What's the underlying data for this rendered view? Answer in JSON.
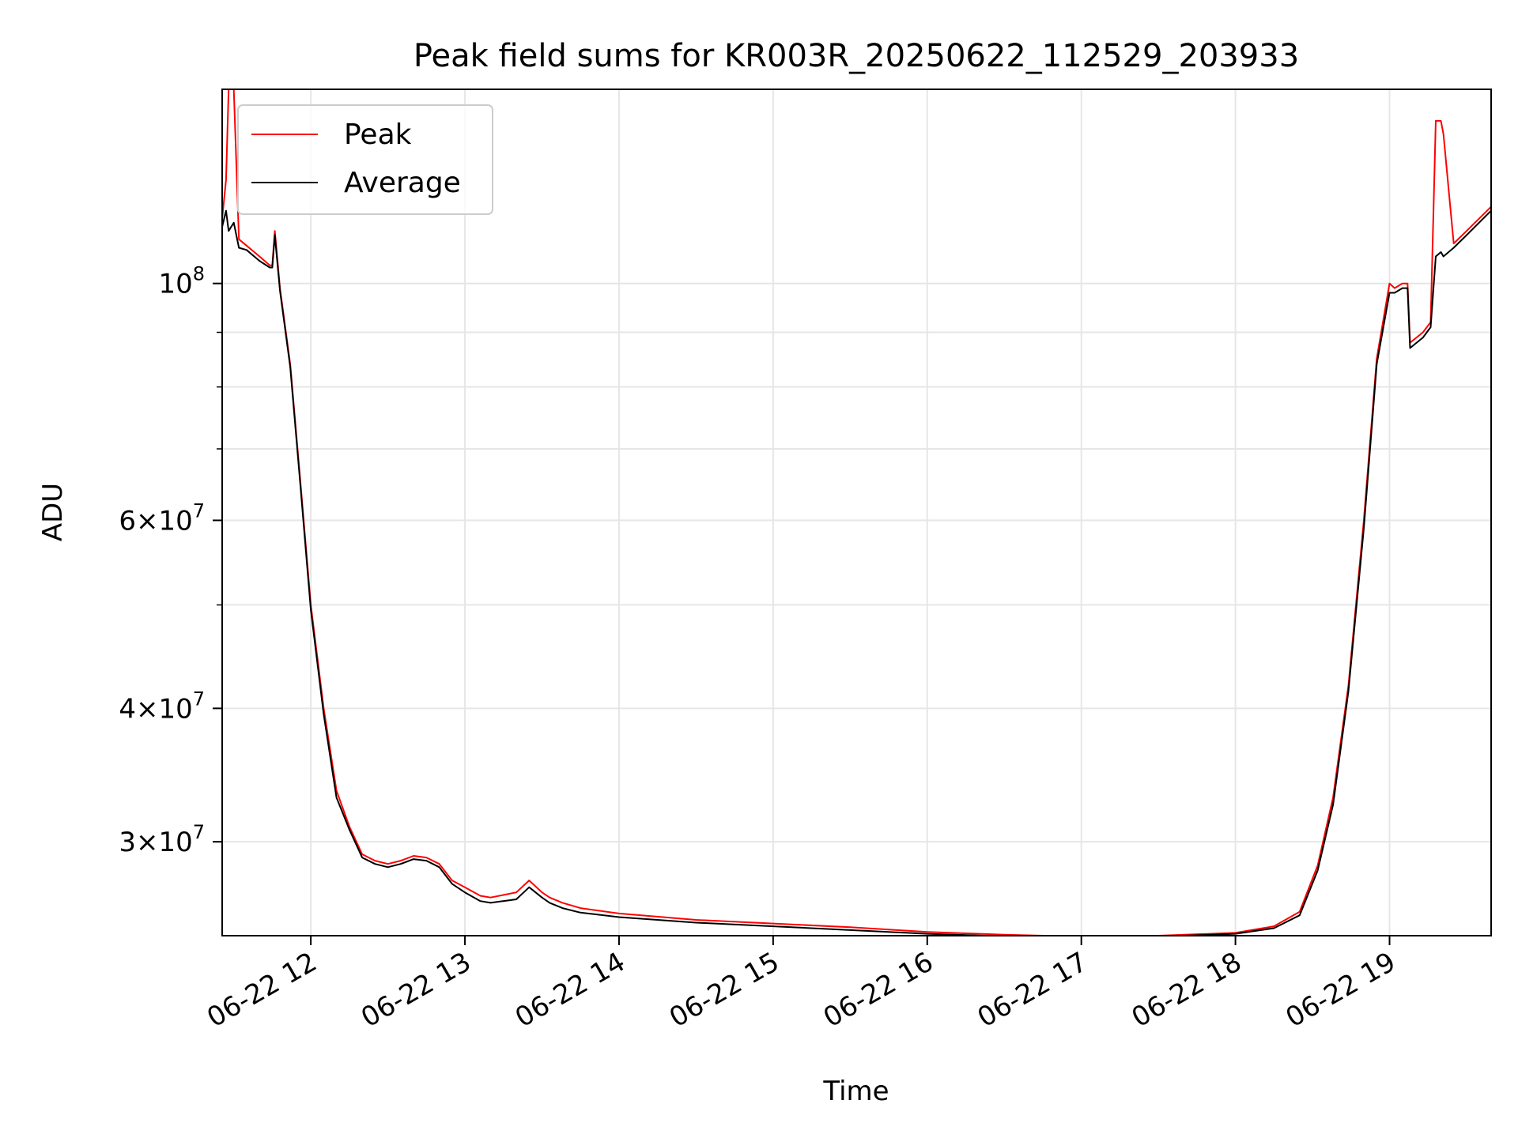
{
  "chart_data": {
    "type": "line",
    "title": "Peak field sums for KR003R_20250622_112529_203933",
    "xlabel": "Time",
    "ylabel": "ADU",
    "y_scale": "log",
    "xlim": [
      "2025-06-22 11:25:29",
      "2025-06-22 19:39:33"
    ],
    "ylim": [
      24500000,
      152000000
    ],
    "x_ticks": [
      "06-22 12",
      "06-22 13",
      "06-22 14",
      "06-22 15",
      "06-22 16",
      "06-22 17",
      "06-22 18",
      "06-22 19"
    ],
    "y_major_ticks": [
      {
        "value": 30000000,
        "mantissa": "3",
        "exp": "7"
      },
      {
        "value": 40000000,
        "mantissa": "4",
        "exp": "7"
      },
      {
        "value": 60000000,
        "mantissa": "6",
        "exp": "7"
      },
      {
        "value": 100000000,
        "mantissa": "",
        "exp": "8"
      }
    ],
    "y_minor_ticks": [
      50000000,
      70000000,
      80000000,
      90000000
    ],
    "grid": true,
    "legend_position": "top-left",
    "series": [
      {
        "name": "Peak",
        "color": "#ff0000",
        "x": [
          "2025-06-22 11:25:29",
          "2025-06-22 11:27:00",
          "2025-06-22 11:28:00",
          "2025-06-22 11:30:00",
          "2025-06-22 11:32:00",
          "2025-06-22 11:35:00",
          "2025-06-22 11:40:00",
          "2025-06-22 11:44:00",
          "2025-06-22 11:45:00",
          "2025-06-22 11:46:00",
          "2025-06-22 11:48:00",
          "2025-06-22 11:52:00",
          "2025-06-22 11:56:00",
          "2025-06-22 12:00:00",
          "2025-06-22 12:05:00",
          "2025-06-22 12:10:00",
          "2025-06-22 12:15:00",
          "2025-06-22 12:20:00",
          "2025-06-22 12:25:00",
          "2025-06-22 12:30:00",
          "2025-06-22 12:35:00",
          "2025-06-22 12:40:00",
          "2025-06-22 12:45:00",
          "2025-06-22 12:50:00",
          "2025-06-22 12:55:00",
          "2025-06-22 13:00:00",
          "2025-06-22 13:06:00",
          "2025-06-22 13:10:00",
          "2025-06-22 13:20:00",
          "2025-06-22 13:25:00",
          "2025-06-22 13:30:00",
          "2025-06-22 13:33:00",
          "2025-06-22 13:38:00",
          "2025-06-22 13:45:00",
          "2025-06-22 14:00:00",
          "2025-06-22 14:30:00",
          "2025-06-22 15:00:00",
          "2025-06-22 15:30:00",
          "2025-06-22 16:00:00",
          "2025-06-22 16:30:00",
          "2025-06-22 17:00:00",
          "2025-06-22 17:30:00",
          "2025-06-22 18:00:00",
          "2025-06-22 18:15:00",
          "2025-06-22 18:25:00",
          "2025-06-22 18:32:00",
          "2025-06-22 18:38:00",
          "2025-06-22 18:44:00",
          "2025-06-22 18:50:00",
          "2025-06-22 18:55:00",
          "2025-06-22 19:00:00",
          "2025-06-22 19:02:00",
          "2025-06-22 19:05:00",
          "2025-06-22 19:07:00",
          "2025-06-22 19:08:00",
          "2025-06-22 19:13:00",
          "2025-06-22 19:16:00",
          "2025-06-22 19:18:00",
          "2025-06-22 19:20:00",
          "2025-06-22 19:21:00",
          "2025-06-22 19:25:00",
          "2025-06-22 19:30:00",
          "2025-06-22 19:39:33"
        ],
        "y": [
          115000000,
          125000000,
          152000000,
          152000000,
          110000000,
          108500000,
          106000000,
          104000000,
          104000000,
          112000000,
          99000000,
          84000000,
          65000000,
          50000000,
          40000000,
          33500000,
          31000000,
          29200000,
          28800000,
          28600000,
          28800000,
          29100000,
          29000000,
          28600000,
          27600000,
          27200000,
          26700000,
          26600000,
          26900000,
          27600000,
          26900000,
          26600000,
          26300000,
          26000000,
          25700000,
          25350000,
          25150000,
          24950000,
          24700000,
          24550000,
          24450000,
          24500000,
          24650000,
          25000000,
          25800000,
          28500000,
          33000000,
          42000000,
          60000000,
          85000000,
          100000000,
          99000000,
          100000000,
          100000000,
          88000000,
          90000000,
          92000000,
          142000000,
          142000000,
          138000000,
          109000000,
          112000000,
          118000000
        ]
      },
      {
        "name": "Average",
        "color": "#000000",
        "x": [
          "2025-06-22 11:25:29",
          "2025-06-22 11:27:00",
          "2025-06-22 11:28:00",
          "2025-06-22 11:30:00",
          "2025-06-22 11:32:00",
          "2025-06-22 11:35:00",
          "2025-06-22 11:40:00",
          "2025-06-22 11:44:00",
          "2025-06-22 11:45:00",
          "2025-06-22 11:46:00",
          "2025-06-22 11:48:00",
          "2025-06-22 11:52:00",
          "2025-06-22 11:56:00",
          "2025-06-22 12:00:00",
          "2025-06-22 12:05:00",
          "2025-06-22 12:10:00",
          "2025-06-22 12:15:00",
          "2025-06-22 12:20:00",
          "2025-06-22 12:25:00",
          "2025-06-22 12:30:00",
          "2025-06-22 12:35:00",
          "2025-06-22 12:40:00",
          "2025-06-22 12:45:00",
          "2025-06-22 12:50:00",
          "2025-06-22 12:55:00",
          "2025-06-22 13:00:00",
          "2025-06-22 13:06:00",
          "2025-06-22 13:10:00",
          "2025-06-22 13:20:00",
          "2025-06-22 13:25:00",
          "2025-06-22 13:30:00",
          "2025-06-22 13:33:00",
          "2025-06-22 13:38:00",
          "2025-06-22 13:45:00",
          "2025-06-22 14:00:00",
          "2025-06-22 14:30:00",
          "2025-06-22 15:00:00",
          "2025-06-22 15:30:00",
          "2025-06-22 16:00:00",
          "2025-06-22 16:30:00",
          "2025-06-22 17:00:00",
          "2025-06-22 17:30:00",
          "2025-06-22 18:00:00",
          "2025-06-22 18:15:00",
          "2025-06-22 18:25:00",
          "2025-06-22 18:32:00",
          "2025-06-22 18:38:00",
          "2025-06-22 18:44:00",
          "2025-06-22 18:50:00",
          "2025-06-22 18:55:00",
          "2025-06-22 19:00:00",
          "2025-06-22 19:02:00",
          "2025-06-22 19:05:00",
          "2025-06-22 19:07:00",
          "2025-06-22 19:08:00",
          "2025-06-22 19:13:00",
          "2025-06-22 19:16:00",
          "2025-06-22 19:18:00",
          "2025-06-22 19:20:00",
          "2025-06-22 19:21:00",
          "2025-06-22 19:25:00",
          "2025-06-22 19:30:00",
          "2025-06-22 19:39:33"
        ],
        "y": [
          113000000,
          117000000,
          112000000,
          114000000,
          108000000,
          107500000,
          105000000,
          103500000,
          103500000,
          111000000,
          98500000,
          83500000,
          64500000,
          49500000,
          39500000,
          33000000,
          30800000,
          29000000,
          28600000,
          28400000,
          28600000,
          28900000,
          28800000,
          28400000,
          27400000,
          26900000,
          26400000,
          26300000,
          26500000,
          27200000,
          26600000,
          26300000,
          26000000,
          25750000,
          25500000,
          25200000,
          25000000,
          24800000,
          24600000,
          24470000,
          24400000,
          24450000,
          24600000,
          24900000,
          25600000,
          28200000,
          32500000,
          41500000,
          59000000,
          84000000,
          98000000,
          98000000,
          99000000,
          99000000,
          87000000,
          89000000,
          91000000,
          106000000,
          107000000,
          106000000,
          108000000,
          111000000,
          117000000
        ]
      }
    ]
  }
}
